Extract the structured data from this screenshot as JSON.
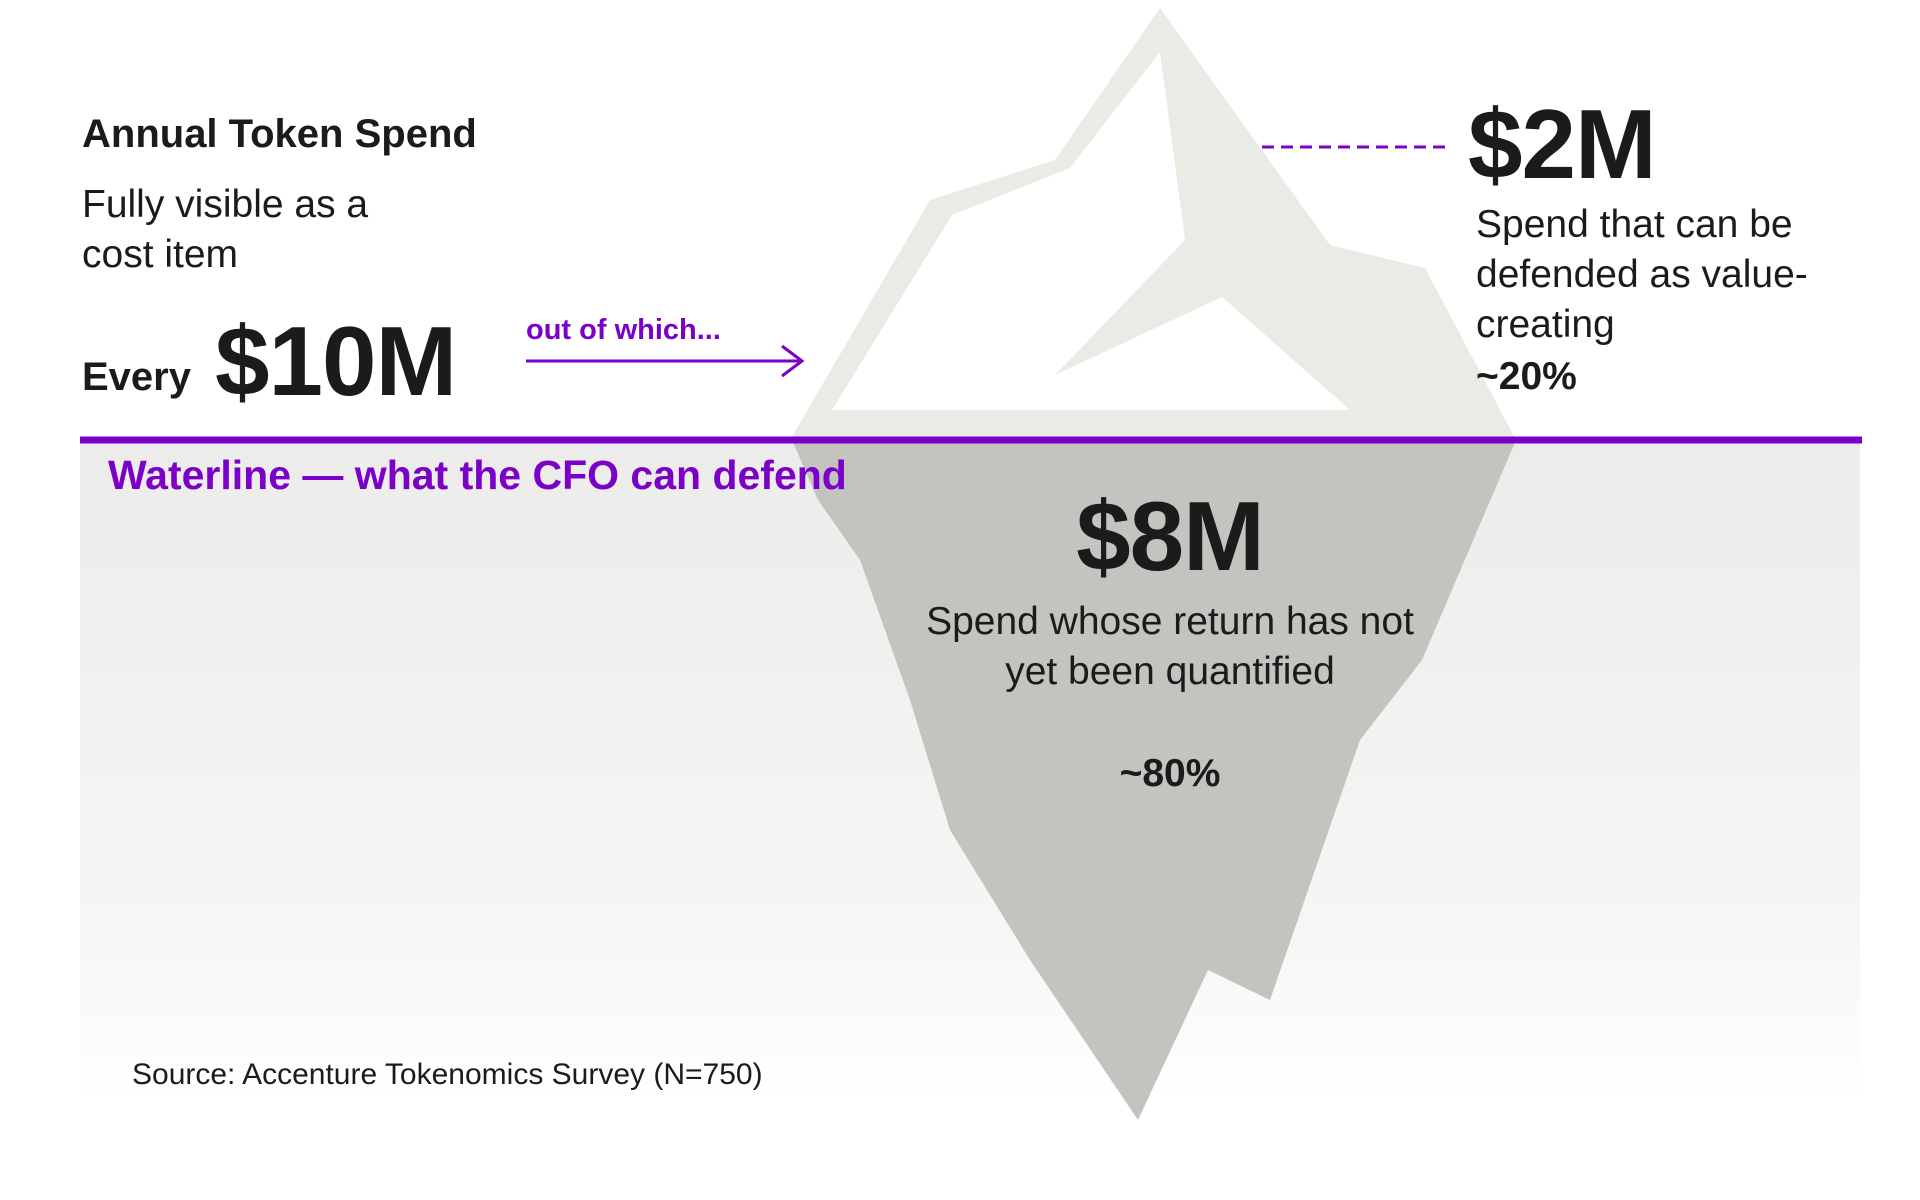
{
  "title": "Annual Token Spend",
  "subtitle": "Fully visible as a cost item",
  "total": {
    "prefix": "Every",
    "value": "$10M"
  },
  "pointer_label": "out of which...",
  "waterline_label": "Waterline — what the CFO can defend",
  "above_water": {
    "value": "$2M",
    "description": "Spend that can be defended as value-creating",
    "share": "~20%"
  },
  "below_water": {
    "value": "$8M",
    "description": "Spend whose return has not yet been quantified",
    "share": "~80%"
  },
  "source": "Source: Accenture Tokenomics Survey (N=750)",
  "colors": {
    "accent": "#7b00c8",
    "iceberg_above": "#ebebe6",
    "iceberg_below": "#c3c3bf",
    "water_top": "#ececea",
    "text": "#1b1b1b"
  }
}
